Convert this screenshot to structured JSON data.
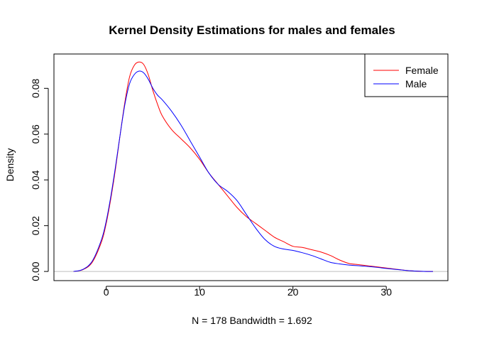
{
  "chart_data": {
    "type": "line",
    "title": "Kernel Density Estimations for males and females",
    "xlabel": "N = 178   Bandwidth = 1.692",
    "ylabel": "Density",
    "xlim": [
      -5.6,
      36.6
    ],
    "ylim": [
      -0.004,
      0.095
    ],
    "xticks": [
      0,
      10,
      20,
      30
    ],
    "xtick_labels": [
      "0",
      "10",
      "20",
      "30"
    ],
    "yticks": [
      0.0,
      0.02,
      0.04,
      0.06,
      0.08
    ],
    "ytick_labels": [
      "0.00",
      "0.02",
      "0.04",
      "0.06",
      "0.08"
    ],
    "baseline": 0,
    "baseline_color": "#bebebe",
    "legend_position": "top-right",
    "series": [
      {
        "name": "Female",
        "color": "#ff0000",
        "x": [
          -3.5,
          -2.5,
          -1.5,
          -0.5,
          0,
          0.5,
          1,
          1.5,
          2,
          2.5,
          3,
          3.5,
          4,
          4.5,
          5,
          5.5,
          6,
          7,
          8,
          9,
          10,
          11,
          12,
          13,
          14,
          15,
          16,
          17,
          18,
          19,
          20,
          21,
          22,
          23,
          24,
          25,
          26,
          27,
          28,
          29,
          30,
          31,
          32,
          33,
          34,
          35
        ],
        "values": [
          0.0,
          0.0008,
          0.004,
          0.013,
          0.021,
          0.032,
          0.045,
          0.06,
          0.074,
          0.085,
          0.09,
          0.0915,
          0.0905,
          0.086,
          0.079,
          0.073,
          0.068,
          0.062,
          0.058,
          0.054,
          0.049,
          0.043,
          0.038,
          0.033,
          0.028,
          0.024,
          0.021,
          0.018,
          0.015,
          0.013,
          0.011,
          0.0105,
          0.0095,
          0.0085,
          0.007,
          0.005,
          0.0035,
          0.003,
          0.0025,
          0.002,
          0.0015,
          0.001,
          0.0005,
          0.0002,
          5e-05,
          0.0
        ]
      },
      {
        "name": "Male",
        "color": "#0000ff",
        "x": [
          -3.5,
          -2.5,
          -1.5,
          -0.5,
          0,
          0.5,
          1,
          1.5,
          2,
          2.5,
          3,
          3.5,
          4,
          4.5,
          5,
          5.5,
          6,
          7,
          8,
          9,
          10,
          11,
          12,
          13,
          14,
          15,
          16,
          17,
          18,
          19,
          20,
          21,
          22,
          23,
          24,
          25,
          26,
          27,
          28,
          29,
          30,
          31,
          32,
          33,
          34,
          35
        ],
        "values": [
          0.0,
          0.0009,
          0.0045,
          0.014,
          0.022,
          0.033,
          0.046,
          0.06,
          0.073,
          0.082,
          0.086,
          0.0875,
          0.0868,
          0.084,
          0.08,
          0.077,
          0.075,
          0.07,
          0.064,
          0.057,
          0.05,
          0.043,
          0.038,
          0.035,
          0.031,
          0.025,
          0.019,
          0.014,
          0.011,
          0.0098,
          0.0092,
          0.0082,
          0.007,
          0.0055,
          0.004,
          0.0033,
          0.0028,
          0.0025,
          0.0022,
          0.0018,
          0.0013,
          0.0009,
          0.0005,
          0.0002,
          5e-05,
          0.0
        ]
      }
    ]
  }
}
